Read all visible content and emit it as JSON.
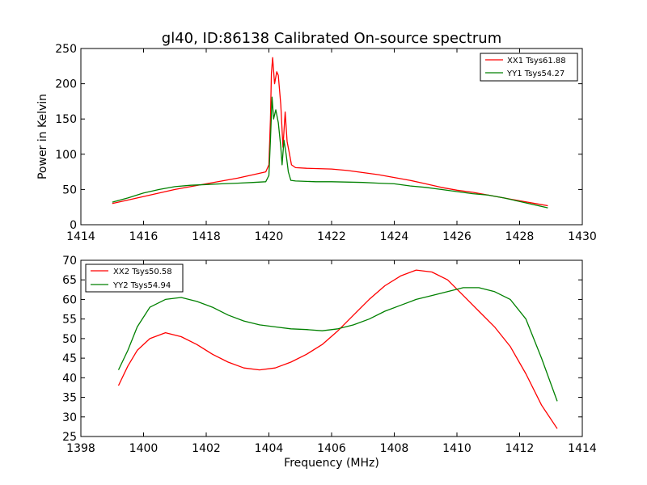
{
  "chart_data": [
    {
      "type": "line",
      "title": "gl40, ID:86138 Calibrated On-source spectrum",
      "xlabel": "",
      "ylabel": "Power in Kelvin",
      "xlim": [
        1414,
        1430
      ],
      "ylim": [
        0,
        250
      ],
      "xticks": [
        1414,
        1416,
        1418,
        1420,
        1422,
        1424,
        1426,
        1428,
        1430
      ],
      "yticks": [
        0,
        50,
        100,
        150,
        200,
        250
      ],
      "grid": false,
      "legend_position": "top-right",
      "series": [
        {
          "name": "XX1 Tsys61.88",
          "color": "#ff0000",
          "points": [
            [
              1415.0,
              30
            ],
            [
              1415.5,
              35
            ],
            [
              1416.0,
              40
            ],
            [
              1416.5,
              45
            ],
            [
              1417.0,
              50
            ],
            [
              1417.5,
              54
            ],
            [
              1418.0,
              58
            ],
            [
              1418.5,
              62
            ],
            [
              1419.0,
              66
            ],
            [
              1419.5,
              71
            ],
            [
              1419.9,
              75
            ],
            [
              1420.0,
              85
            ],
            [
              1420.05,
              150
            ],
            [
              1420.08,
              215
            ],
            [
              1420.12,
              237
            ],
            [
              1420.18,
              200
            ],
            [
              1420.25,
              217
            ],
            [
              1420.3,
              212
            ],
            [
              1420.38,
              170
            ],
            [
              1420.45,
              110
            ],
            [
              1420.52,
              160
            ],
            [
              1420.58,
              118
            ],
            [
              1420.65,
              102
            ],
            [
              1420.72,
              85
            ],
            [
              1420.85,
              81
            ],
            [
              1421.2,
              80
            ],
            [
              1422.0,
              79
            ],
            [
              1422.5,
              77
            ],
            [
              1423.0,
              74
            ],
            [
              1423.5,
              71
            ],
            [
              1424.0,
              67
            ],
            [
              1424.5,
              63
            ],
            [
              1425.0,
              58
            ],
            [
              1425.5,
              53
            ],
            [
              1426.0,
              49
            ],
            [
              1426.5,
              46
            ],
            [
              1427.0,
              42
            ],
            [
              1427.5,
              38
            ],
            [
              1428.0,
              34
            ],
            [
              1428.5,
              30
            ],
            [
              1428.9,
              27
            ]
          ]
        },
        {
          "name": "YY1 Tsys54.27",
          "color": "#008000",
          "points": [
            [
              1415.0,
              32
            ],
            [
              1415.5,
              38
            ],
            [
              1416.0,
              45
            ],
            [
              1416.5,
              50
            ],
            [
              1417.0,
              54
            ],
            [
              1417.5,
              56
            ],
            [
              1418.0,
              57
            ],
            [
              1418.5,
              58
            ],
            [
              1419.0,
              59
            ],
            [
              1419.5,
              60
            ],
            [
              1419.9,
              61
            ],
            [
              1420.0,
              70
            ],
            [
              1420.05,
              120
            ],
            [
              1420.1,
              181
            ],
            [
              1420.15,
              150
            ],
            [
              1420.22,
              163
            ],
            [
              1420.3,
              145
            ],
            [
              1420.38,
              110
            ],
            [
              1420.42,
              85
            ],
            [
              1420.48,
              120
            ],
            [
              1420.55,
              100
            ],
            [
              1420.62,
              75
            ],
            [
              1420.7,
              63
            ],
            [
              1420.85,
              62
            ],
            [
              1421.5,
              61
            ],
            [
              1422.0,
              61
            ],
            [
              1423.0,
              60
            ],
            [
              1423.5,
              59
            ],
            [
              1424.0,
              58
            ],
            [
              1424.5,
              55
            ],
            [
              1425.0,
              53
            ],
            [
              1425.5,
              50
            ],
            [
              1426.0,
              47
            ],
            [
              1426.5,
              44
            ],
            [
              1427.0,
              42
            ],
            [
              1427.5,
              38
            ],
            [
              1428.0,
              33
            ],
            [
              1428.5,
              28
            ],
            [
              1428.9,
              24
            ]
          ]
        }
      ]
    },
    {
      "type": "line",
      "title": "",
      "xlabel": "Frequency (MHz)",
      "ylabel": "",
      "xlim": [
        1398,
        1414
      ],
      "ylim": [
        25,
        70
      ],
      "xticks": [
        1398,
        1400,
        1402,
        1404,
        1406,
        1408,
        1410,
        1412,
        1414
      ],
      "yticks": [
        25,
        30,
        35,
        40,
        45,
        50,
        55,
        60,
        65,
        70
      ],
      "grid": false,
      "legend_position": "top-left",
      "series": [
        {
          "name": "XX2 Tsys50.58",
          "color": "#ff0000",
          "points": [
            [
              1399.2,
              38
            ],
            [
              1399.5,
              43
            ],
            [
              1399.8,
              47
            ],
            [
              1400.2,
              50
            ],
            [
              1400.7,
              51.5
            ],
            [
              1401.2,
              50.5
            ],
            [
              1401.7,
              48.5
            ],
            [
              1402.2,
              46
            ],
            [
              1402.7,
              44
            ],
            [
              1403.2,
              42.5
            ],
            [
              1403.7,
              42
            ],
            [
              1404.2,
              42.5
            ],
            [
              1404.7,
              44
            ],
            [
              1405.2,
              46
            ],
            [
              1405.7,
              48.5
            ],
            [
              1406.2,
              52
            ],
            [
              1406.7,
              56
            ],
            [
              1407.2,
              60
            ],
            [
              1407.7,
              63.5
            ],
            [
              1408.2,
              66
            ],
            [
              1408.7,
              67.5
            ],
            [
              1409.2,
              67
            ],
            [
              1409.7,
              65
            ],
            [
              1410.2,
              61
            ],
            [
              1410.7,
              57
            ],
            [
              1411.2,
              53
            ],
            [
              1411.7,
              48
            ],
            [
              1412.2,
              41
            ],
            [
              1412.7,
              33
            ],
            [
              1413.2,
              27
            ]
          ]
        },
        {
          "name": "YY2 Tsys54.94",
          "color": "#008000",
          "points": [
            [
              1399.2,
              42
            ],
            [
              1399.5,
              47
            ],
            [
              1399.8,
              53
            ],
            [
              1400.2,
              58
            ],
            [
              1400.7,
              60
            ],
            [
              1401.2,
              60.5
            ],
            [
              1401.7,
              59.5
            ],
            [
              1402.2,
              58
            ],
            [
              1402.7,
              56
            ],
            [
              1403.2,
              54.5
            ],
            [
              1403.7,
              53.5
            ],
            [
              1404.2,
              53
            ],
            [
              1404.7,
              52.5
            ],
            [
              1405.2,
              52.3
            ],
            [
              1405.7,
              52
            ],
            [
              1406.2,
              52.5
            ],
            [
              1406.7,
              53.5
            ],
            [
              1407.2,
              55
            ],
            [
              1407.7,
              57
            ],
            [
              1408.2,
              58.5
            ],
            [
              1408.7,
              60
            ],
            [
              1409.2,
              61
            ],
            [
              1409.7,
              62
            ],
            [
              1410.2,
              63
            ],
            [
              1410.7,
              63
            ],
            [
              1411.2,
              62
            ],
            [
              1411.7,
              60
            ],
            [
              1412.2,
              55
            ],
            [
              1412.7,
              45
            ],
            [
              1413.2,
              34
            ]
          ]
        }
      ]
    }
  ]
}
